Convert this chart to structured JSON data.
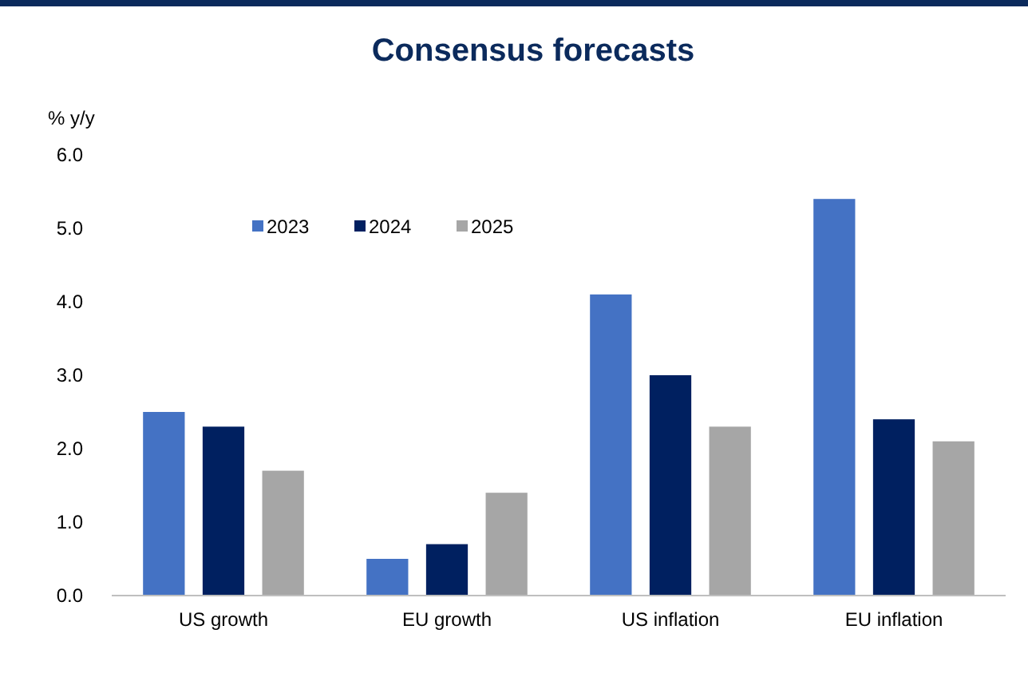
{
  "chart_data": {
    "type": "bar",
    "title": "Consensus forecasts",
    "ylabel": "% y/y",
    "categories": [
      "US growth",
      "EU growth",
      "US inflation",
      "EU inflation"
    ],
    "series": [
      {
        "name": "2023",
        "color": "#4472c4",
        "values": [
          2.5,
          0.5,
          4.1,
          5.4
        ]
      },
      {
        "name": "2024",
        "color": "#002060",
        "values": [
          2.3,
          0.7,
          3.0,
          2.4
        ]
      },
      {
        "name": "2025",
        "color": "#a6a6a6",
        "values": [
          1.7,
          1.4,
          2.3,
          2.1
        ]
      }
    ],
    "ylim": [
      0,
      6
    ],
    "yticks": [
      {
        "value": 0,
        "label": "0.0"
      },
      {
        "value": 1,
        "label": "1.0"
      },
      {
        "value": 2,
        "label": "2.0"
      },
      {
        "value": 3,
        "label": "3.0"
      },
      {
        "value": 4,
        "label": "4.0"
      },
      {
        "value": 5,
        "label": "5.0"
      },
      {
        "value": 6,
        "label": "6.0"
      }
    ],
    "grid": false,
    "legend": "top"
  }
}
